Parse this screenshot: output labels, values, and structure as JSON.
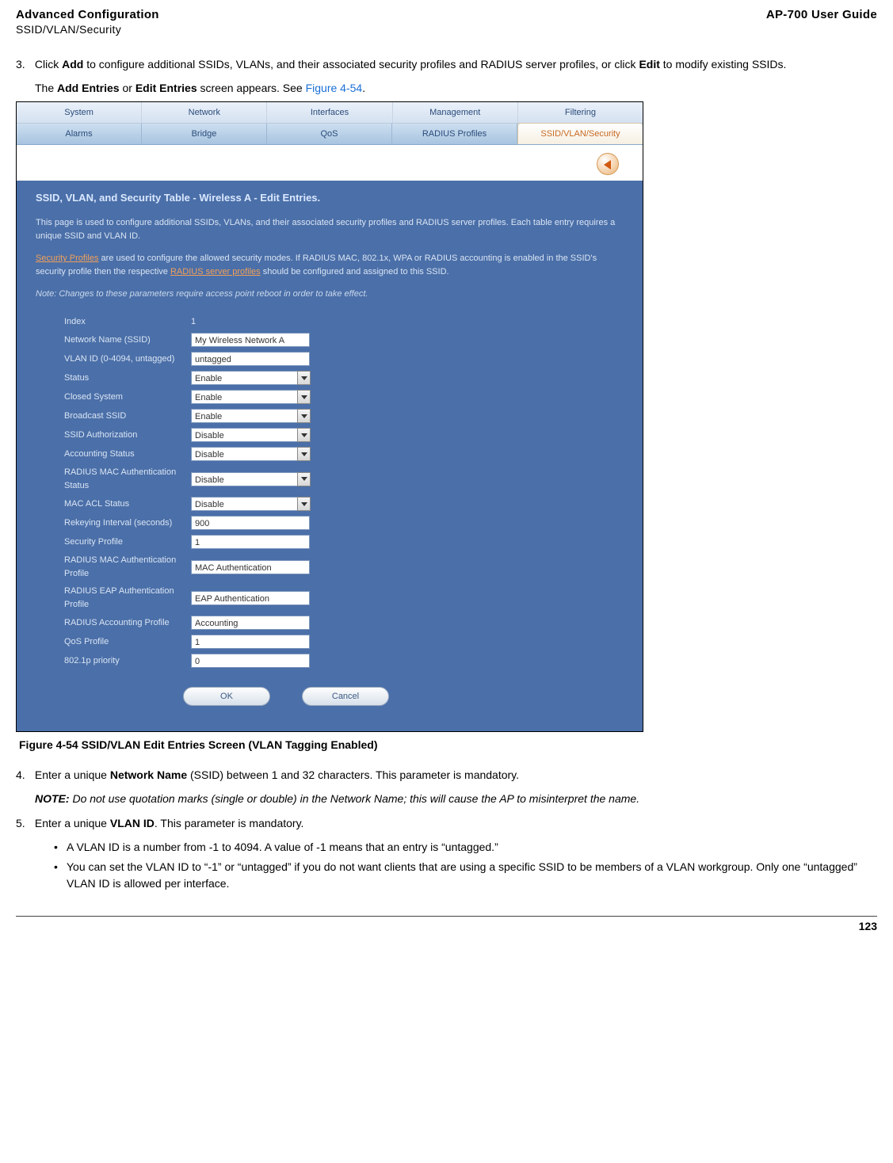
{
  "header": {
    "left_line1": "Advanced Configuration",
    "left_line2": "SSID/VLAN/Security",
    "right": "AP-700 User Guide"
  },
  "step3": {
    "num": "3.",
    "text_a": "Click ",
    "add": "Add",
    "text_b": " to configure additional SSIDs, VLANs, and their associated security profiles and RADIUS server profiles, or click ",
    "edit": "Edit",
    "text_c": " to modify existing SSIDs."
  },
  "step3_line2": {
    "a": "The ",
    "b": "Add Entries",
    "c": " or ",
    "d": "Edit Entries",
    "e": " screen appears. See ",
    "link": "Figure 4-54",
    "f": "."
  },
  "tabs_primary": [
    "System",
    "Network",
    "Interfaces",
    "Management",
    "Filtering"
  ],
  "tabs_secondary": [
    "Alarms",
    "Bridge",
    "QoS",
    "RADIUS Profiles",
    "SSID/VLAN/Security"
  ],
  "panel": {
    "title": "SSID, VLAN, and Security Table - Wireless A - Edit Entries.",
    "p1": "This page is used to configure additional SSIDs, VLANs, and their associated security profiles and RADIUS server profiles. Each table entry requires a unique SSID and VLAN ID.",
    "p2a": "Security Profiles",
    "p2b": " are used to configure the allowed security modes. If RADIUS MAC, 802.1x, WPA or RADIUS accounting is enabled in the SSID's security profile then the respective ",
    "p2c": "RADIUS server profiles",
    "p2d": " should be configured and assigned to this SSID.",
    "note": "Note: Changes to these parameters require access point reboot in order to take effect."
  },
  "form": {
    "index_label": "Index",
    "index_val": "1",
    "nn_label": "Network Name (SSID)",
    "nn_val": "My Wireless Network A",
    "vlan_label": "VLAN ID (0-4094, untagged)",
    "vlan_val": "untagged",
    "status_label": "Status",
    "status_val": "Enable",
    "closed_label": "Closed System",
    "closed_val": "Enable",
    "bssid_label": "Broadcast SSID",
    "bssid_val": "Enable",
    "auth_label": "SSID Authorization",
    "auth_val": "Disable",
    "acct_label": "Accounting Status",
    "acct_val": "Disable",
    "rmac_label": "RADIUS MAC Authentication Status",
    "rmac_val": "Disable",
    "macacl_label": "MAC ACL Status",
    "macacl_val": "Disable",
    "rekey_label": "Rekeying Interval (seconds)",
    "rekey_val": "900",
    "sprof_label": "Security Profile",
    "sprof_val": "1",
    "rmacp_label": "RADIUS MAC Authentication Profile",
    "rmacp_val": "MAC Authentication",
    "reap_label": "RADIUS EAP Authentication Profile",
    "reap_val": "EAP Authentication",
    "racct_label": "RADIUS Accounting Profile",
    "racct_val": "Accounting",
    "qos_label": "QoS Profile",
    "qos_val": "1",
    "pri_label": "802.1p priority",
    "pri_val": "0",
    "ok": "OK",
    "cancel": "Cancel"
  },
  "caption": "Figure 4-54 SSID/VLAN Edit Entries Screen (VLAN Tagging Enabled)",
  "step4": {
    "num": "4.",
    "a": "Enter a unique ",
    "b": "Network Name",
    "c": " (SSID) between 1 and 32 characters. This parameter is mandatory."
  },
  "note4": {
    "label": "NOTE:",
    "text": " Do not use quotation marks (single or double) in the Network Name; this will cause the AP to misinterpret the name."
  },
  "step5": {
    "num": "5.",
    "a": "Enter a unique ",
    "b": "VLAN ID",
    "c": ". This parameter is mandatory."
  },
  "bullets5": {
    "b1": "A VLAN ID is a number from -1 to 4094. A value of -1 means that an entry is “untagged.”",
    "b2": "You can set the VLAN ID to “-1” or “untagged” if you do not want clients that are using a specific SSID to be members of a VLAN workgroup. Only one “untagged” VLAN ID is allowed per interface."
  },
  "page_num": "123"
}
